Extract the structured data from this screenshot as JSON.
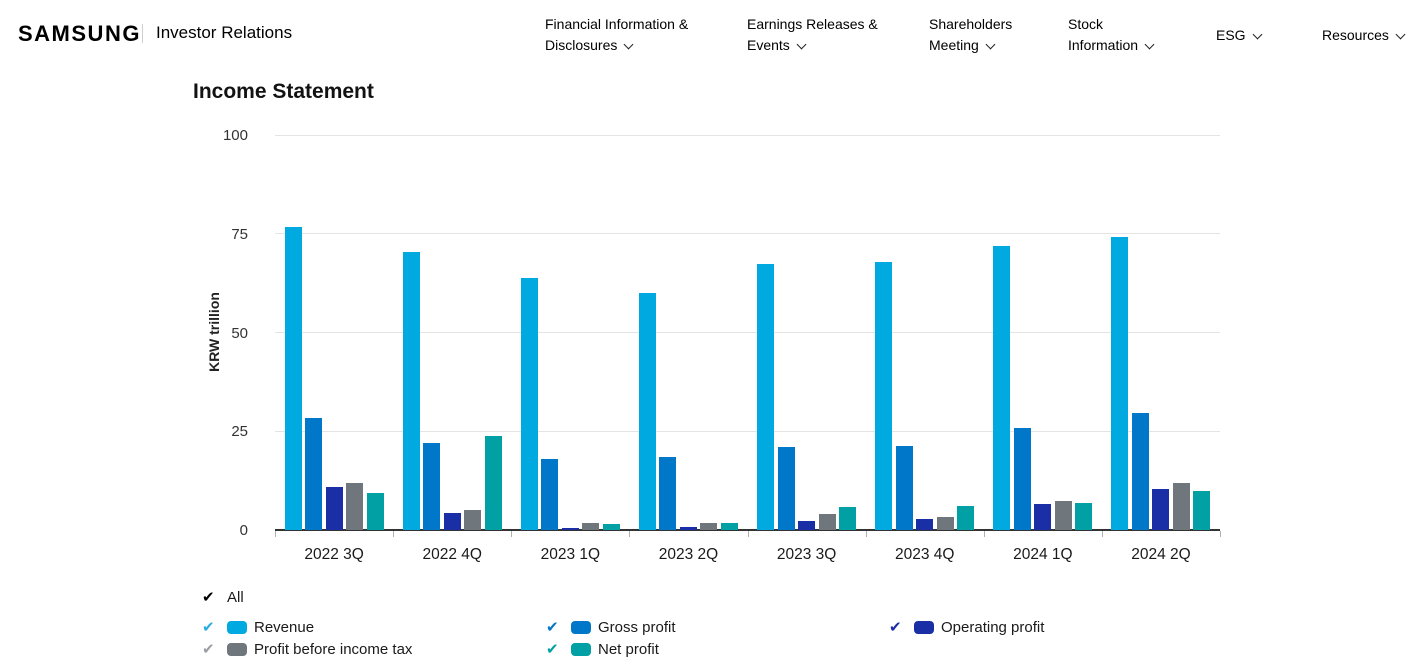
{
  "header": {
    "logo": "SAMSUNG",
    "brand": "Investor Relations",
    "nav": [
      "Financial Information & Disclosures",
      "Earnings Releases & Events",
      "Shareholders Meeting",
      "Stock Information",
      "ESG",
      "Resources"
    ]
  },
  "page": {
    "title": "Income Statement"
  },
  "chart_data": {
    "type": "bar",
    "title": "Income Statement",
    "ylabel": "KRW trillion",
    "ylim": [
      0,
      100
    ],
    "yticks": [
      0,
      25,
      50,
      75,
      100
    ],
    "grid": true,
    "legend_position": "bottom",
    "legend_all_label": "All",
    "categories": [
      "2022 3Q",
      "2022 4Q",
      "2023 1Q",
      "2023 2Q",
      "2023 3Q",
      "2023 4Q",
      "2024 1Q",
      "2024 2Q"
    ],
    "series": [
      {
        "name": "Revenue",
        "color": "#00a9e0",
        "check_color": "#2aabe2",
        "values": [
          76.8,
          70.5,
          63.7,
          60.0,
          67.4,
          67.8,
          71.9,
          74.1
        ]
      },
      {
        "name": "Gross profit",
        "color": "#0077c8",
        "check_color": "#0077c8",
        "values": [
          28.4,
          21.9,
          17.9,
          18.4,
          20.9,
          21.2,
          25.7,
          29.6
        ]
      },
      {
        "name": "Operating profit",
        "color": "#1a2ea6",
        "check_color": "#1a2ea6",
        "values": [
          10.9,
          4.3,
          0.6,
          0.7,
          2.4,
          2.8,
          6.6,
          10.4
        ]
      },
      {
        "name": "Profit before income tax",
        "color": "#70777c",
        "check_color": "#999fa4",
        "values": [
          11.9,
          5.0,
          1.7,
          1.7,
          4.0,
          3.2,
          7.4,
          11.8
        ]
      },
      {
        "name": "Net profit",
        "color": "#00a0a4",
        "check_color": "#00a0a4",
        "values": [
          9.4,
          23.8,
          1.6,
          1.7,
          5.8,
          6.2,
          6.8,
          9.9
        ]
      }
    ],
    "colors": {
      "grid": "#e4e4e4",
      "axis": "#333333",
      "tick": "#b0b0b0"
    },
    "icons": {
      "check": "✔"
    }
  }
}
